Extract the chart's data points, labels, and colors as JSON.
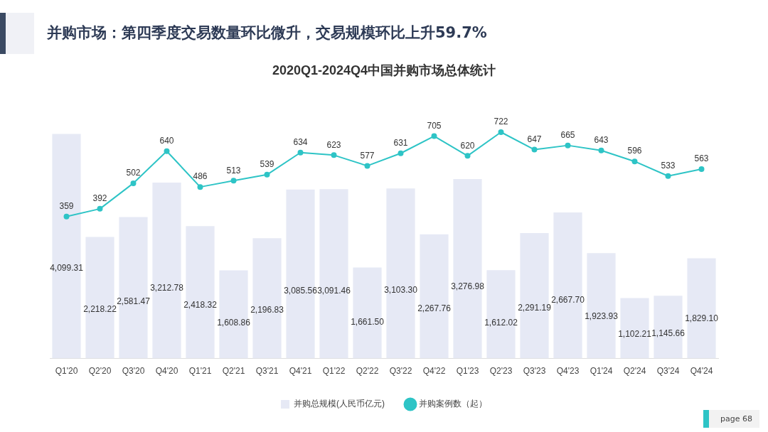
{
  "chart_data": {
    "type": "bar",
    "title": "并购市场：第四季度交易数量环比微升，交易规模环比上升59.7%",
    "subtitle": "2020Q1-2024Q4中国并购市场总体统计",
    "categories": [
      "Q1'20",
      "Q2'20",
      "Q3'20",
      "Q4'20",
      "Q1'21",
      "Q2'21",
      "Q3'21",
      "Q4'21",
      "Q1'22",
      "Q2'22",
      "Q3'22",
      "Q4'22",
      "Q1'23",
      "Q2'23",
      "Q3'23",
      "Q4'23",
      "Q1'24",
      "Q2'24",
      "Q3'24",
      "Q4'24"
    ],
    "series": [
      {
        "name": "并购总规模(人民币亿元)",
        "color": "#e6e9f5",
        "values": [
          4099.31,
          2218.22,
          2581.47,
          3212.78,
          2418.32,
          1608.86,
          2196.83,
          3085.56,
          3091.46,
          1661.5,
          3103.3,
          2267.76,
          3276.98,
          1612.02,
          2291.19,
          2667.7,
          1923.93,
          1102.21,
          1145.66,
          1829.1
        ],
        "value_labels": [
          "4,099.31",
          "2,218.22",
          "2,581.47",
          "3,212.78",
          "2,418.32",
          "1,608.86",
          "2,196.83",
          "3,085.56",
          "3,091.46",
          "1,661.50",
          "3,103.30",
          "2,267.76",
          "3,276.98",
          "1,612.02",
          "2,291.19",
          "2,667.70",
          "1,923.93",
          "1,102.21",
          "1,145.66",
          "1,829.10"
        ]
      },
      {
        "name": "并购案例数（起）",
        "type": "line",
        "axis": "y2",
        "color": "#2ec4c6",
        "values": [
          359,
          392,
          502,
          640,
          486,
          513,
          539,
          634,
          623,
          577,
          631,
          705,
          620,
          722,
          647,
          665,
          643,
          596,
          533,
          563
        ]
      }
    ],
    "data_labels": true,
    "legend": "bottom",
    "marker": "circle",
    "line_style": "solid",
    "grid": false,
    "tick_labels": "x",
    "annotations": [
      "page 68"
    ]
  }
}
